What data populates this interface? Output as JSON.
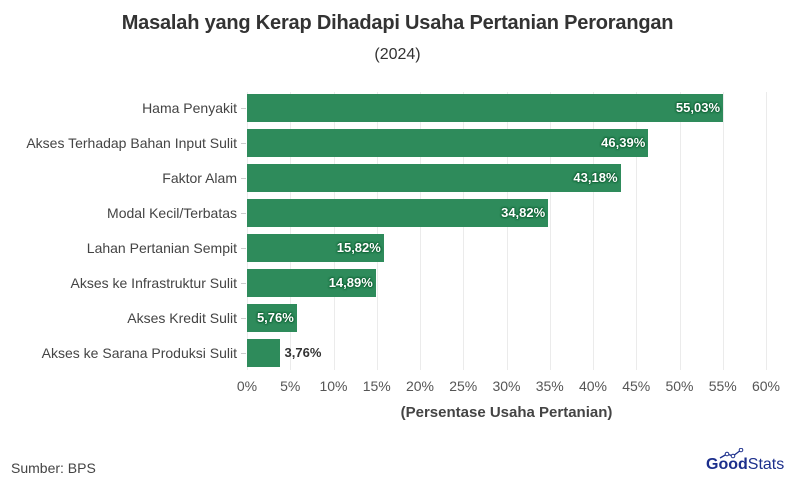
{
  "header": {
    "title": "Masalah yang Kerap Dihadapi Usaha Pertanian Perorangan",
    "subtitle": "(2024)"
  },
  "footer": {
    "source": "Sumber: BPS",
    "logo_bold": "Good",
    "logo_light": "Stats"
  },
  "colors": {
    "bar": "#2e8b5b",
    "logo": "#1c2f8c"
  },
  "chart_data": {
    "type": "bar",
    "orientation": "horizontal",
    "title": "Masalah yang Kerap Dihadapi Usaha Pertanian Perorangan",
    "subtitle": "(2024)",
    "xlabel": "(Persentase Usaha Pertanian)",
    "ylabel": "",
    "xlim": [
      0,
      60
    ],
    "grid": true,
    "legend": null,
    "categories": [
      "Hama Penyakit",
      "Akses Terhadap Bahan Input Sulit",
      "Faktor Alam",
      "Modal Kecil/Terbatas",
      "Lahan Pertanian Sempit",
      "Akses ke Infrastruktur Sulit",
      "Akses Kredit Sulit",
      "Akses ke Sarana Produksi Sulit"
    ],
    "values": [
      55.03,
      46.39,
      43.18,
      34.82,
      15.82,
      14.89,
      5.76,
      3.76
    ],
    "value_labels": [
      "55,03%",
      "46,39%",
      "43,18%",
      "34,82%",
      "15,82%",
      "14,89%",
      "5,76%",
      "3,76%"
    ],
    "x_ticks": [
      "0%",
      "5%",
      "10%",
      "15%",
      "20%",
      "25%",
      "30%",
      "35%",
      "40%",
      "45%",
      "50%",
      "55%",
      "60%"
    ],
    "source": "Sumber: BPS"
  }
}
